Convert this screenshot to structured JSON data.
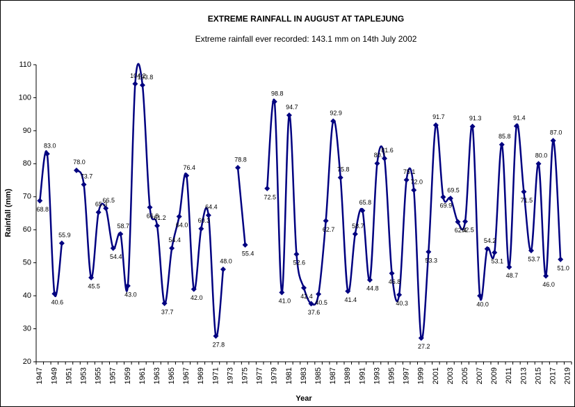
{
  "chart_data": {
    "type": "line",
    "title": "EXTREME RAINFALL IN AUGUST AT TAPLEJUNG",
    "subtitle": "Extreme rainfall ever recorded: 143.1 mm on 14th July 2002",
    "x_label": "Year",
    "y_label": "Rainfall (mm)",
    "categories": [
      "1947",
      null,
      "1949",
      null,
      "1951",
      null,
      "1953",
      null,
      "1955",
      null,
      "1957",
      null,
      "1959",
      null,
      "1961",
      null,
      "1963",
      null,
      "1965",
      null,
      "1967",
      null,
      "1969",
      null,
      "1971",
      null,
      "1973",
      null,
      "1975",
      null,
      "1977",
      null,
      "1979",
      null,
      "1981",
      null,
      "1983",
      null,
      "1985",
      null,
      "1987",
      null,
      "1989",
      null,
      "1991",
      null,
      "1993",
      null,
      "1995",
      null,
      "1997",
      null,
      "1999",
      null,
      "2001",
      null,
      "2003",
      null,
      "2005",
      null,
      "2007",
      null,
      "2009",
      null,
      "2011",
      null,
      "2013",
      null,
      "2015",
      null,
      "2017",
      null,
      "2019"
    ],
    "series": [
      {
        "name": "Rainfall",
        "color": "#000080",
        "values": [
          68.8,
          83.0,
          40.6,
          55.9,
          null,
          78.0,
          73.7,
          45.5,
          65.3,
          66.5,
          54.4,
          58.7,
          43.0,
          104.2,
          103.8,
          66.8,
          61.2,
          37.7,
          54.4,
          64.0,
          76.4,
          42.0,
          60.3,
          64.4,
          27.8,
          48.0,
          null,
          78.8,
          55.4,
          null,
          null,
          72.5,
          98.8,
          41.0,
          94.7,
          52.6,
          42.4,
          37.6,
          40.5,
          62.7,
          92.9,
          75.8,
          41.4,
          58.7,
          65.8,
          44.8,
          80.1,
          81.6,
          46.8,
          40.3,
          75.1,
          72.0,
          27.2,
          53.3,
          91.7,
          69.9,
          69.5,
          62.4,
          62.5,
          91.3,
          40.0,
          54.2,
          53.1,
          85.8,
          48.7,
          91.4,
          71.5,
          53.7,
          80.0,
          46.0,
          87.0,
          51.0,
          null
        ],
        "value_labels": [
          "68.8",
          "83.0",
          "40.6",
          "55.9",
          null,
          "78.0",
          "73.7",
          "45.5",
          "65.3",
          "66.5",
          "54.4",
          "58.7",
          "43.0",
          "104.2",
          "103.8",
          "66.8",
          "61.2",
          "37.7",
          "54.4",
          "64.0",
          "76.4",
          "42.0",
          "60.3",
          "64.4",
          "27.8",
          "48.0",
          null,
          "78.8",
          "55.4",
          null,
          null,
          "72.5",
          "98.8",
          "41.0",
          "94.7",
          "52.6",
          "42.4",
          "37.6",
          "40.5",
          "62.7",
          "92.9",
          "75.8",
          "41.4",
          "58.7",
          "65.8",
          "44.8",
          "80.1",
          "81.6",
          "46.8",
          "40.3",
          "75.1",
          "72.0",
          "27.2",
          "53.3",
          "91.7",
          "69.9",
          "69.5",
          "62.4",
          "62.5",
          "91.3",
          "40.0",
          "54.2",
          "53.1",
          "85.8",
          "48.7",
          "91.4",
          "71.5",
          "53.7",
          "80.0",
          "46.0",
          "87.0",
          "51.0",
          null
        ]
      }
    ],
    "ylim": [
      20,
      110
    ],
    "yticks": [
      20,
      30,
      40,
      50,
      60,
      70,
      80,
      90,
      100,
      110
    ],
    "grid": false
  }
}
